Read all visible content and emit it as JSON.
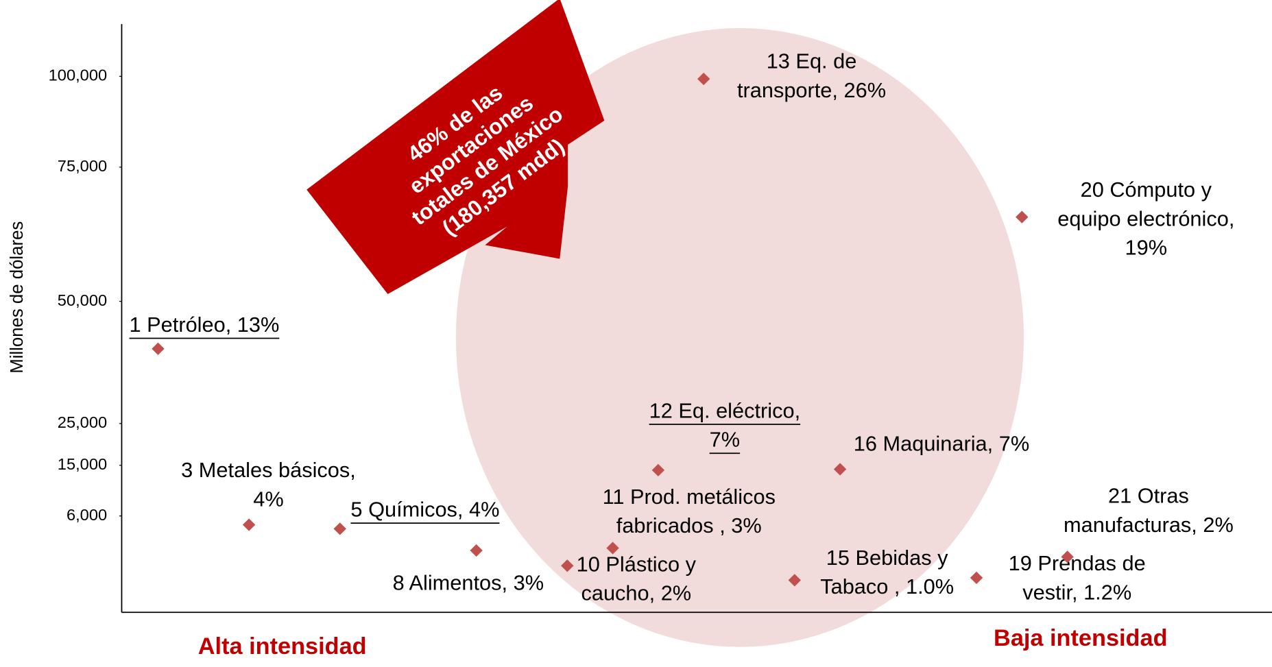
{
  "chart_data": {
    "type": "scatter",
    "y_label": "Millones de dólares",
    "annotation": [
      "46% de las",
      "exportaciones",
      "totales de México",
      "(180,357 mdd)"
    ],
    "left_label": "Alta intensidad",
    "right_label": "Baja intensidad",
    "color": "#c0504d",
    "labels": [
      [
        "1 Petróleo, 13%"
      ],
      [
        "3 Metales básicos,",
        "4%"
      ],
      [
        "5 Químicos, 4%"
      ],
      [
        "8 Alimentos, 3%"
      ],
      [
        "10 Plástico y",
        "caucho, 2%"
      ],
      [
        "11 Prod. metálicos",
        "fabricados , 3%"
      ],
      [
        "12 Eq. eléctrico,",
        "7%"
      ],
      [
        "13 Eq. de",
        "transporte, 26%"
      ],
      [
        "15 Bebidas y",
        "Tabaco , 1.0%"
      ],
      [
        "16 Maquinaria, 7%"
      ],
      [
        "19 Prendas de",
        "vestir, 1.2%"
      ],
      [
        "20 Cómputo y",
        "equipo electrónico,",
        "19%"
      ],
      [
        "21 Otras",
        "manufacturas, 2%"
      ]
    ],
    "x": [
      1,
      3,
      5,
      8,
      10,
      11,
      12,
      13,
      15,
      16,
      19,
      20,
      21
    ],
    "values": [
      40300,
      5450,
      5200,
      3850,
      2900,
      4000,
      14140,
      99300,
      2000,
      14300,
      2150,
      65700,
      3450
    ],
    "xlim": [
      0.2,
      25.5
    ],
    "ylim": [
      0,
      115000
    ],
    "yticks": [
      {
        "value": 6000,
        "label": "6,000"
      },
      {
        "value": 15000,
        "label": "15,000"
      },
      {
        "value": 25000,
        "label": "25,000"
      },
      {
        "value": 50000,
        "label": "50,000"
      },
      {
        "value": 75000,
        "label": "75,000"
      },
      {
        "value": 100000,
        "label": "100,000"
      }
    ]
  }
}
